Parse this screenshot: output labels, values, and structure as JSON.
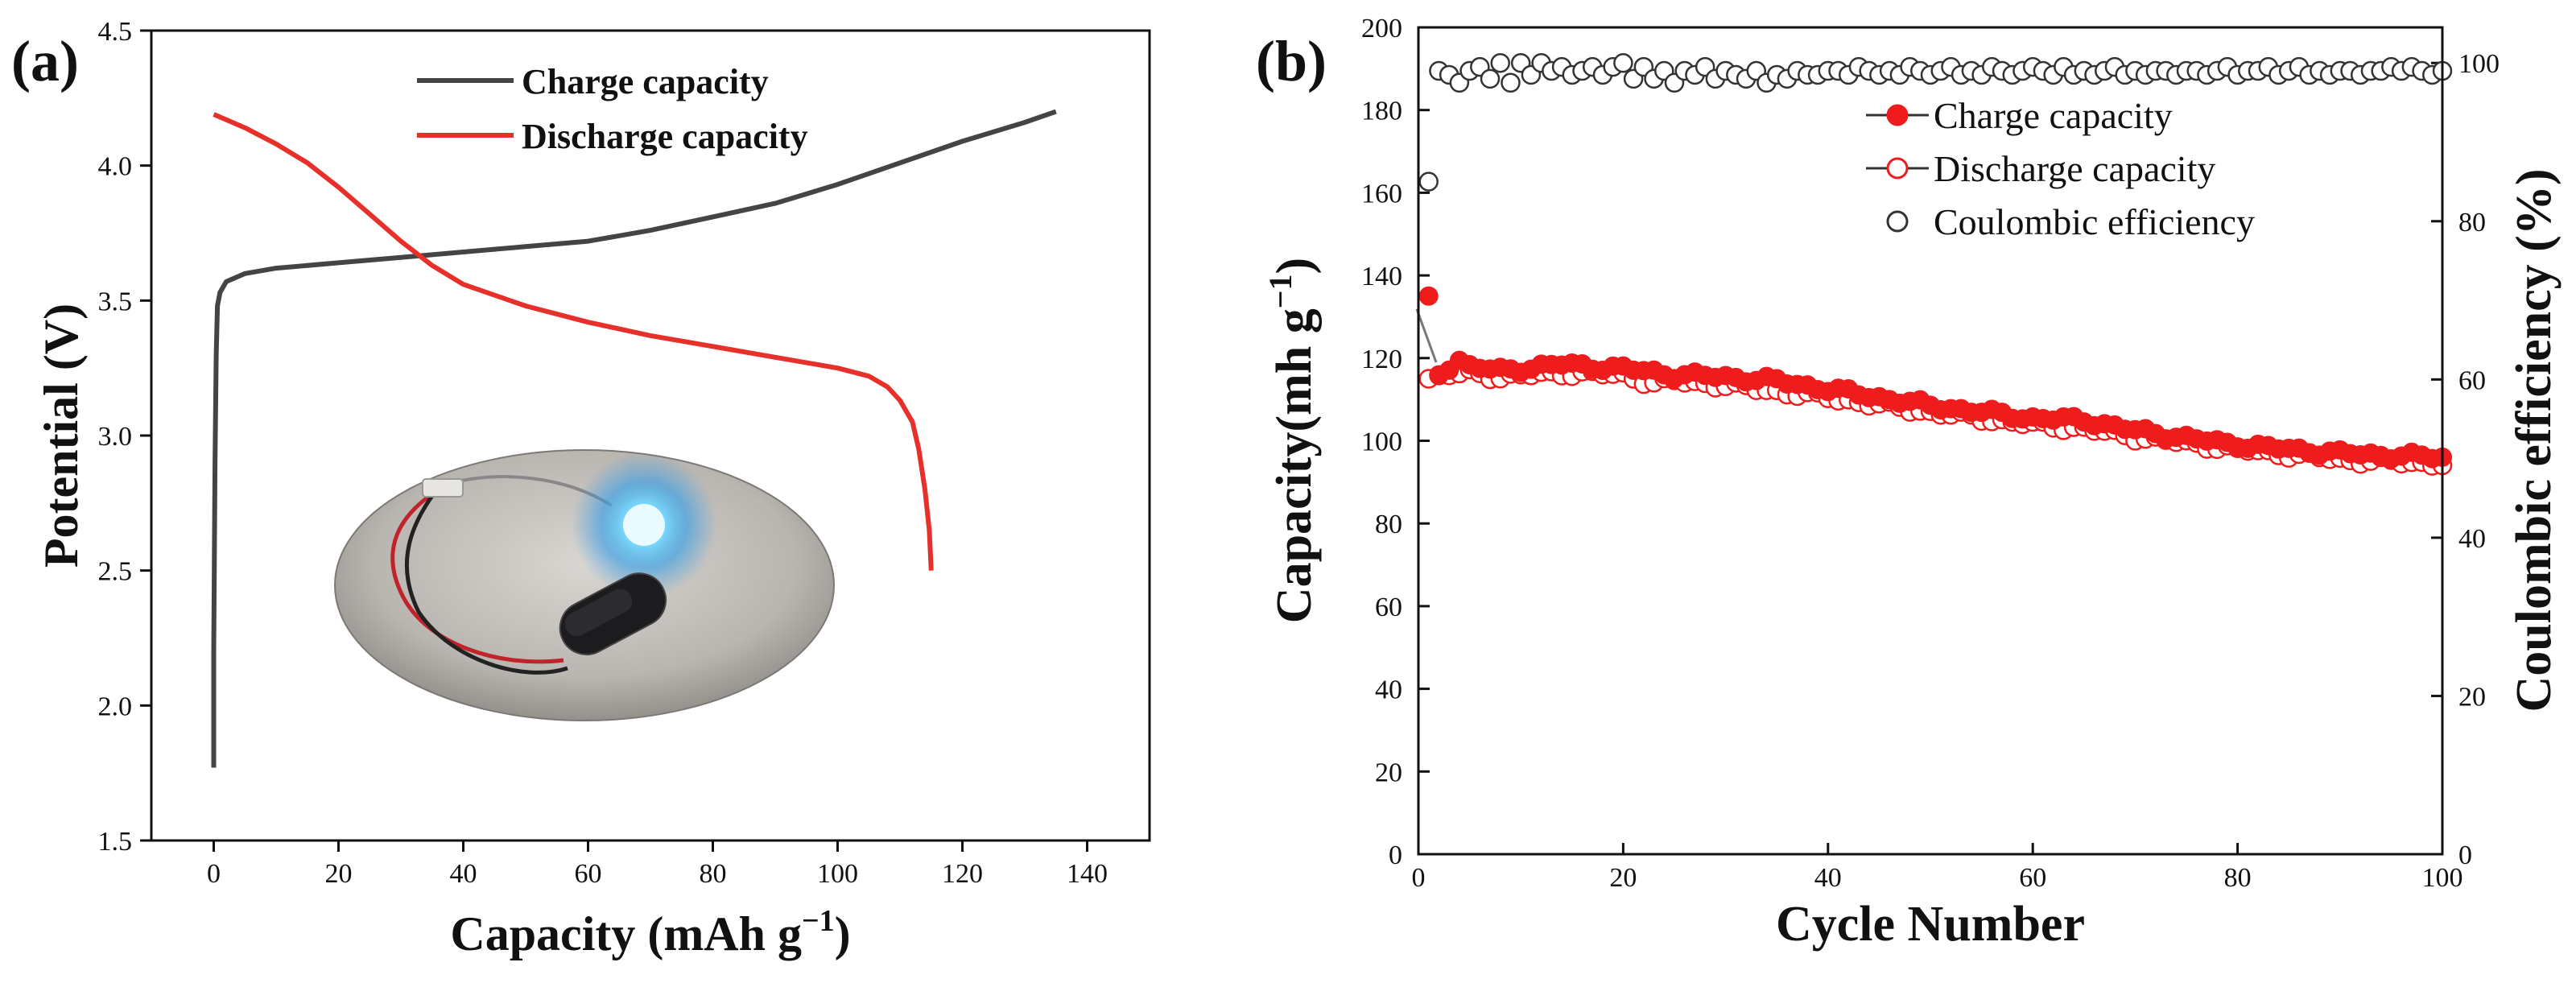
{
  "chart_data": [
    {
      "panel": "(a)",
      "type": "line",
      "xlabel": "Capacity (mAh g",
      "xlabel_sup": "−1",
      "xlabel_end": ")",
      "ylabel": "Potential (V)",
      "xlim": [
        -10,
        150
      ],
      "ylim": [
        1.5,
        4.5
      ],
      "xticks": [
        0,
        20,
        40,
        60,
        80,
        100,
        120,
        140
      ],
      "yticks": [
        1.5,
        2.0,
        2.5,
        3.0,
        3.5,
        4.0,
        4.5
      ],
      "legend_position": "top-center",
      "inset": "photo of a coin cell powering a blue LED",
      "series": [
        {
          "name": "Charge capacity",
          "color": "#444444",
          "points": [
            [
              0,
              1.77
            ],
            [
              0,
              2.2
            ],
            [
              0.2,
              2.9
            ],
            [
              0.4,
              3.3
            ],
            [
              0.6,
              3.48
            ],
            [
              1,
              3.53
            ],
            [
              2,
              3.57
            ],
            [
              5,
              3.6
            ],
            [
              10,
              3.62
            ],
            [
              20,
              3.64
            ],
            [
              30,
              3.66
            ],
            [
              40,
              3.68
            ],
            [
              50,
              3.7
            ],
            [
              60,
              3.72
            ],
            [
              70,
              3.76
            ],
            [
              80,
              3.81
            ],
            [
              90,
              3.86
            ],
            [
              100,
              3.93
            ],
            [
              110,
              4.01
            ],
            [
              120,
              4.09
            ],
            [
              130,
              4.16
            ],
            [
              135,
              4.2
            ]
          ]
        },
        {
          "name": "Discharge capacity",
          "color": "#e8302a",
          "points": [
            [
              0,
              4.19
            ],
            [
              5,
              4.14
            ],
            [
              10,
              4.08
            ],
            [
              15,
              4.01
            ],
            [
              20,
              3.92
            ],
            [
              25,
              3.82
            ],
            [
              30,
              3.72
            ],
            [
              35,
              3.63
            ],
            [
              40,
              3.56
            ],
            [
              50,
              3.48
            ],
            [
              60,
              3.42
            ],
            [
              70,
              3.37
            ],
            [
              80,
              3.33
            ],
            [
              90,
              3.29
            ],
            [
              100,
              3.25
            ],
            [
              105,
              3.22
            ],
            [
              108,
              3.18
            ],
            [
              110,
              3.13
            ],
            [
              112,
              3.05
            ],
            [
              113,
              2.95
            ],
            [
              114,
              2.8
            ],
            [
              114.7,
              2.65
            ],
            [
              115,
              2.5
            ]
          ]
        }
      ]
    },
    {
      "panel": "(b)",
      "type": "scatter",
      "xlabel": "Cycle Number",
      "ylabel": "Capacity(mh g",
      "ylabel_sup": "−1",
      "ylabel_end": ")",
      "y2label": "Coulombic efficiency (%)",
      "xlim": [
        0,
        100
      ],
      "ylim": [
        0,
        200
      ],
      "y2lim": [
        0,
        104.5
      ],
      "xticks": [
        0,
        20,
        40,
        60,
        80,
        100
      ],
      "yticks": [
        0,
        20,
        40,
        60,
        80,
        100,
        120,
        140,
        160,
        180,
        200
      ],
      "y2ticks": [
        0,
        20,
        40,
        60,
        80,
        100
      ],
      "legend_position": "top-center",
      "series": [
        {
          "name": "Charge capacity",
          "axis": "left",
          "marker": "filled-circle",
          "color": "#ee1c1c",
          "anchors": [
            [
              1,
              135
            ],
            [
              2,
              116
            ],
            [
              3,
              118
            ],
            [
              4,
              119.5
            ],
            [
              5,
              118
            ],
            [
              8,
              117
            ],
            [
              14,
              118.5
            ],
            [
              20,
              117.5
            ],
            [
              25,
              116
            ],
            [
              30,
              115.5
            ],
            [
              35,
              114.5
            ],
            [
              40,
              112.5
            ],
            [
              50,
              108.5
            ],
            [
              60,
              105.5
            ],
            [
              65,
              105
            ],
            [
              70,
              102.5
            ],
            [
              80,
              99
            ],
            [
              90,
              97
            ],
            [
              100,
              96
            ]
          ]
        },
        {
          "name": "Discharge capacity",
          "axis": "left",
          "marker": "open-circle",
          "color": "#ee1c1c",
          "anchors": [
            [
              1,
              115
            ],
            [
              2,
              115.5
            ],
            [
              3,
              116
            ],
            [
              5,
              116.5
            ],
            [
              8,
              115.5
            ],
            [
              14,
              116.5
            ],
            [
              20,
              116
            ],
            [
              23,
              114
            ],
            [
              25,
              114.5
            ],
            [
              30,
              113.5
            ],
            [
              35,
              112
            ],
            [
              40,
              110.5
            ],
            [
              50,
              107
            ],
            [
              60,
              104
            ],
            [
              65,
              103
            ],
            [
              70,
              101
            ],
            [
              80,
              98
            ],
            [
              90,
              95.5
            ],
            [
              100,
              94.5
            ]
          ]
        },
        {
          "name": "Coulombic efficiency",
          "axis": "right",
          "marker": "open-circle",
          "color": "#333333",
          "values": [
            85,
            99,
            98.5,
            97.5,
            99,
            99.5,
            98,
            100,
            97.5,
            100,
            98.5,
            100,
            99,
            99.5,
            98.5,
            99,
            99.5,
            98.5,
            99.5,
            100,
            98,
            99.5,
            98,
            99,
            97.5,
            99,
            98.5,
            99.5,
            98,
            99,
            98.5,
            98,
            99,
            97.5,
            98.5,
            98,
            99,
            98.5,
            98.5,
            99,
            99,
            98.5,
            99.5,
            99,
            98.5,
            99,
            98.5,
            99.5,
            99,
            98.5,
            99,
            99.5,
            98.5,
            99,
            98.5,
            99.5,
            99,
            98.5,
            99,
            99.5,
            99,
            98.5,
            99.5,
            98.5,
            99,
            98.5,
            99,
            99.5,
            98.5,
            99,
            98.5,
            99,
            99,
            98.5,
            99,
            99,
            98.5,
            99,
            99.5,
            98.5,
            99,
            99,
            99.5,
            98.5,
            99,
            99.5,
            98.5,
            99,
            98.5,
            99,
            99,
            98.5,
            99,
            99,
            99.5,
            99,
            99.5,
            99,
            98.5,
            99
          ]
        }
      ]
    }
  ]
}
